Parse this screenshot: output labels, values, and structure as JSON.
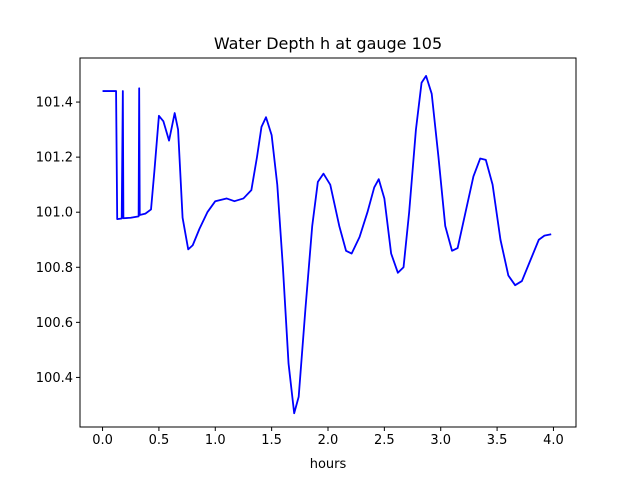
{
  "chart_data": {
    "type": "line",
    "title": "Water Depth h at gauge 105",
    "xlabel": "hours",
    "ylabel": "",
    "xlim": [
      -0.2,
      4.2
    ],
    "ylim": [
      100.22,
      101.56
    ],
    "xticks": [
      0.0,
      0.5,
      1.0,
      1.5,
      2.0,
      2.5,
      3.0,
      3.5,
      4.0
    ],
    "xtick_labels": [
      "0.0",
      "0.5",
      "1.0",
      "1.5",
      "2.0",
      "2.5",
      "3.0",
      "3.5",
      "4.0"
    ],
    "yticks": [
      100.4,
      100.6,
      100.8,
      101.0,
      101.2,
      101.4
    ],
    "ytick_labels": [
      "100.4",
      "100.6",
      "100.8",
      "101.0",
      "101.2",
      "101.4"
    ],
    "grid": false,
    "line_color": "#0000ff",
    "series": [
      {
        "points": [
          [
            0.0,
            101.44
          ],
          [
            0.1,
            101.44
          ],
          [
            0.12,
            101.44
          ],
          [
            0.13,
            100.975
          ],
          [
            0.17,
            100.977
          ],
          [
            0.18,
            101.44
          ],
          [
            0.185,
            100.978
          ],
          [
            0.25,
            100.98
          ],
          [
            0.32,
            100.985
          ],
          [
            0.325,
            101.45
          ],
          [
            0.33,
            100.99
          ],
          [
            0.38,
            100.995
          ],
          [
            0.43,
            101.01
          ],
          [
            0.46,
            101.15
          ],
          [
            0.5,
            101.35
          ],
          [
            0.54,
            101.33
          ],
          [
            0.59,
            101.26
          ],
          [
            0.64,
            101.36
          ],
          [
            0.67,
            101.3
          ],
          [
            0.71,
            100.98
          ],
          [
            0.76,
            100.865
          ],
          [
            0.8,
            100.88
          ],
          [
            0.86,
            100.94
          ],
          [
            0.93,
            101.0
          ],
          [
            1.0,
            101.04
          ],
          [
            1.05,
            101.045
          ],
          [
            1.1,
            101.05
          ],
          [
            1.17,
            101.04
          ],
          [
            1.25,
            101.05
          ],
          [
            1.32,
            101.08
          ],
          [
            1.37,
            101.2
          ],
          [
            1.41,
            101.31
          ],
          [
            1.45,
            101.345
          ],
          [
            1.5,
            101.28
          ],
          [
            1.55,
            101.1
          ],
          [
            1.6,
            100.8
          ],
          [
            1.65,
            100.45
          ],
          [
            1.7,
            100.27
          ],
          [
            1.74,
            100.33
          ],
          [
            1.8,
            100.65
          ],
          [
            1.86,
            100.95
          ],
          [
            1.91,
            101.11
          ],
          [
            1.96,
            101.14
          ],
          [
            2.02,
            101.1
          ],
          [
            2.1,
            100.95
          ],
          [
            2.16,
            100.86
          ],
          [
            2.21,
            100.85
          ],
          [
            2.28,
            100.91
          ],
          [
            2.35,
            101.0
          ],
          [
            2.41,
            101.09
          ],
          [
            2.45,
            101.12
          ],
          [
            2.5,
            101.05
          ],
          [
            2.56,
            100.85
          ],
          [
            2.62,
            100.78
          ],
          [
            2.67,
            100.8
          ],
          [
            2.72,
            101.0
          ],
          [
            2.78,
            101.3
          ],
          [
            2.83,
            101.47
          ],
          [
            2.87,
            101.495
          ],
          [
            2.92,
            101.43
          ],
          [
            2.98,
            101.2
          ],
          [
            3.04,
            100.95
          ],
          [
            3.1,
            100.86
          ],
          [
            3.15,
            100.87
          ],
          [
            3.22,
            101.0
          ],
          [
            3.29,
            101.13
          ],
          [
            3.35,
            101.195
          ],
          [
            3.4,
            101.19
          ],
          [
            3.46,
            101.1
          ],
          [
            3.53,
            100.9
          ],
          [
            3.6,
            100.77
          ],
          [
            3.66,
            100.735
          ],
          [
            3.72,
            100.75
          ],
          [
            3.8,
            100.83
          ],
          [
            3.87,
            100.9
          ],
          [
            3.92,
            100.915
          ],
          [
            3.98,
            100.92
          ]
        ]
      }
    ]
  }
}
